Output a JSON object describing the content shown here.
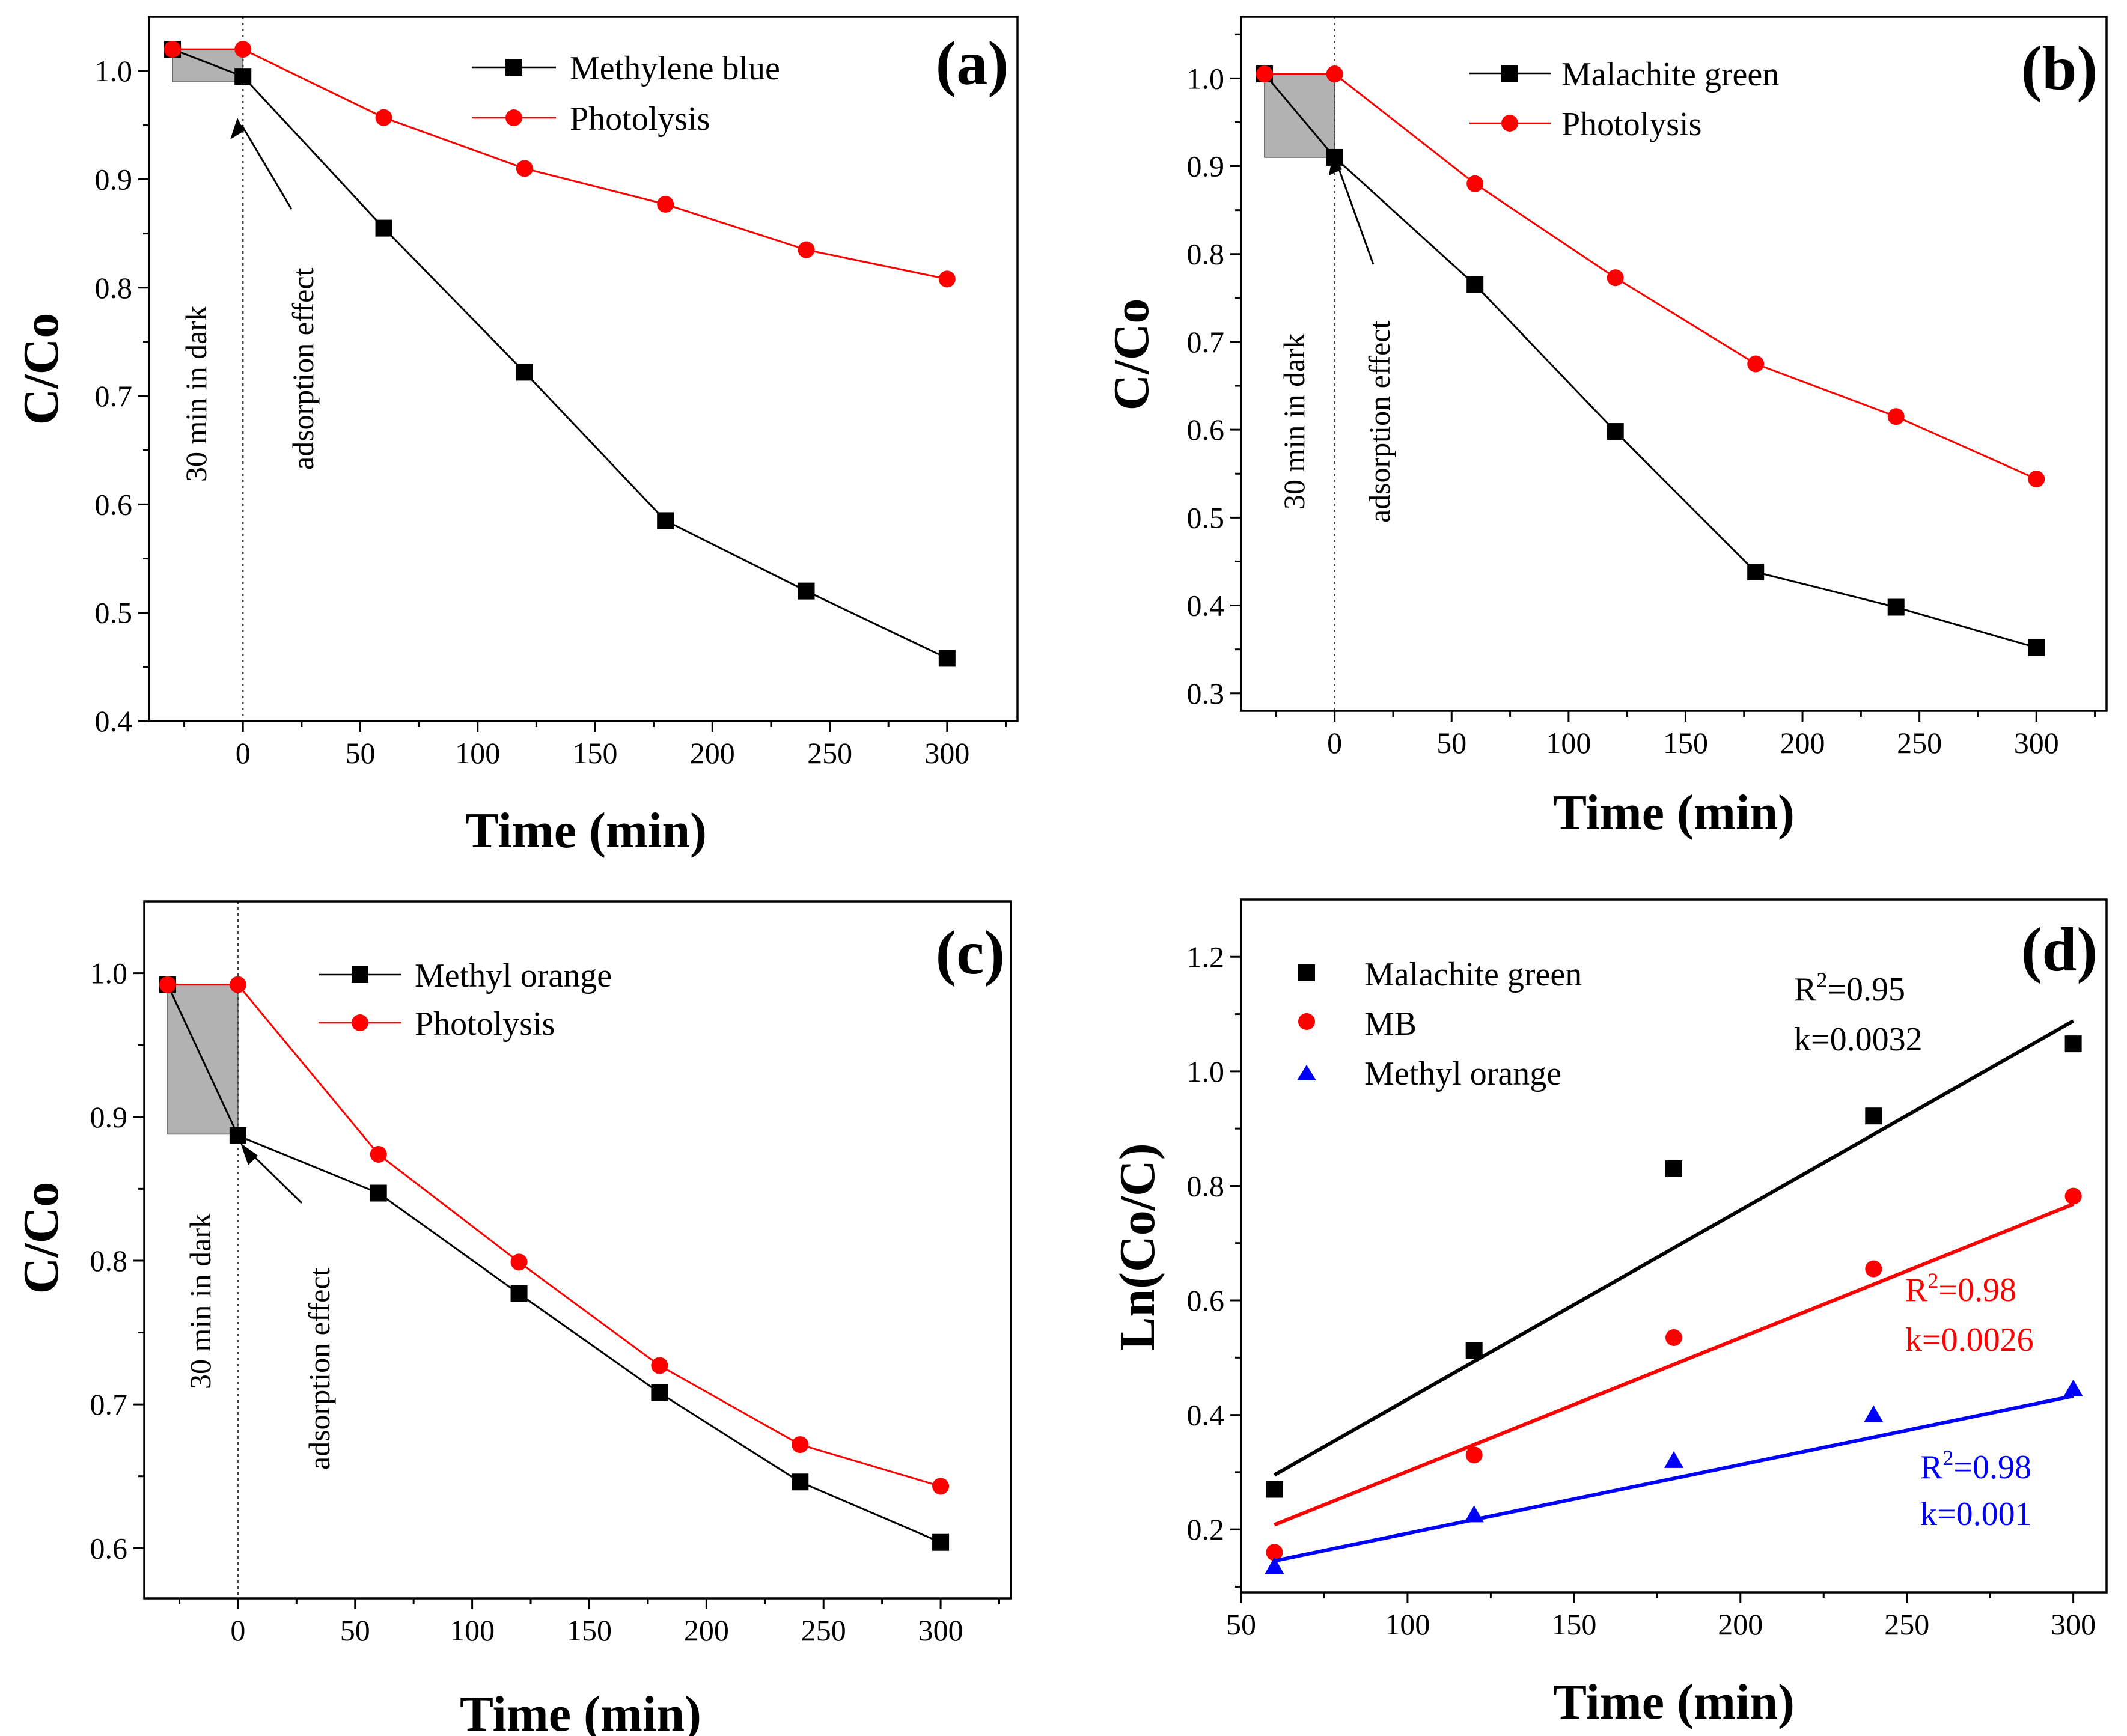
{
  "chart_data": [
    {
      "id": "a",
      "type": "line",
      "panel_label": "(a)",
      "xlabel": "Time (min)",
      "ylabel": "C/Co",
      "xlim": [
        -40,
        330
      ],
      "ylim": [
        0.4,
        1.05
      ],
      "xticks": [
        0,
        50,
        100,
        150,
        200,
        250,
        300
      ],
      "yticks": [
        0.4,
        0.5,
        0.6,
        0.7,
        0.8,
        0.9,
        1.0
      ],
      "ytick_decimals": 1,
      "dark_region": {
        "x0": -30,
        "x1": 0,
        "y_low": 0.99,
        "y_high": 1.02
      },
      "annotations": {
        "dark": "30 min in dark",
        "adsorption": "adsorption effect"
      },
      "series": [
        {
          "name": "Methylene blue",
          "color": "#000000",
          "marker": "square",
          "x": [
            -30,
            0,
            60,
            120,
            180,
            240,
            300
          ],
          "y": [
            1.02,
            0.995,
            0.855,
            0.722,
            0.585,
            0.52,
            0.458
          ]
        },
        {
          "name": "Photolysis",
          "color": "#ff0000",
          "marker": "circle",
          "x": [
            -30,
            0,
            60,
            120,
            180,
            240,
            300
          ],
          "y": [
            1.02,
            1.02,
            0.957,
            0.91,
            0.877,
            0.835,
            0.808
          ]
        }
      ]
    },
    {
      "id": "b",
      "type": "line",
      "panel_label": "(b)",
      "xlabel": "Time (min)",
      "ylabel": "C/Co",
      "xlim": [
        -40,
        330
      ],
      "ylim": [
        0.28,
        1.07
      ],
      "xticks": [
        0,
        50,
        100,
        150,
        200,
        250,
        300
      ],
      "yticks": [
        0.3,
        0.4,
        0.5,
        0.6,
        0.7,
        0.8,
        0.9,
        1.0
      ],
      "ytick_decimals": 1,
      "dark_region": {
        "x0": -30,
        "x1": 0,
        "y_low": 0.91,
        "y_high": 1.005
      },
      "annotations": {
        "dark": "30 min in dark",
        "adsorption": "adsorption effect"
      },
      "series": [
        {
          "name": "Malachite green",
          "color": "#000000",
          "marker": "square",
          "x": [
            -30,
            0,
            60,
            120,
            180,
            240,
            300
          ],
          "y": [
            1.005,
            0.91,
            0.765,
            0.598,
            0.438,
            0.398,
            0.352
          ]
        },
        {
          "name": "Photolysis",
          "color": "#ff0000",
          "marker": "circle",
          "x": [
            -30,
            0,
            60,
            120,
            180,
            240,
            300
          ],
          "y": [
            1.005,
            1.005,
            0.88,
            0.773,
            0.675,
            0.615,
            0.544
          ]
        }
      ]
    },
    {
      "id": "c",
      "type": "line",
      "panel_label": "(c)",
      "xlabel": "Time (min)",
      "ylabel": "C/Co",
      "xlim": [
        -40,
        330
      ],
      "ylim": [
        0.565,
        1.05
      ],
      "xticks": [
        0,
        50,
        100,
        150,
        200,
        250,
        300
      ],
      "yticks": [
        0.6,
        0.7,
        0.8,
        0.9,
        1.0
      ],
      "ytick_decimals": 1,
      "dark_region": {
        "x0": -30,
        "x1": 0,
        "y_low": 0.888,
        "y_high": 0.992
      },
      "annotations": {
        "dark": "30 min in dark",
        "adsorption": "adsorption effect"
      },
      "series": [
        {
          "name": "Methyl orange",
          "color": "#000000",
          "marker": "square",
          "x": [
            -30,
            0,
            60,
            120,
            180,
            240,
            300
          ],
          "y": [
            0.992,
            0.887,
            0.847,
            0.777,
            0.708,
            0.646,
            0.604
          ]
        },
        {
          "name": "Photolysis",
          "color": "#ff0000",
          "marker": "circle",
          "x": [
            -30,
            0,
            60,
            120,
            180,
            240,
            300
          ],
          "y": [
            0.992,
            0.992,
            0.874,
            0.799,
            0.727,
            0.672,
            0.643
          ]
        }
      ]
    },
    {
      "id": "d",
      "type": "scatter",
      "panel_label": "(d)",
      "xlabel": "Time (min)",
      "ylabel": "Ln(Co/C)",
      "xlim": [
        50,
        310
      ],
      "ylim": [
        0.09,
        1.3
      ],
      "xticks": [
        50,
        100,
        150,
        200,
        250,
        300
      ],
      "yticks": [
        0.2,
        0.4,
        0.6,
        0.8,
        1.0,
        1.2
      ],
      "ytick_decimals": 1,
      "series": [
        {
          "name": "Malachite green",
          "color": "#000000",
          "marker": "square",
          "x": [
            60,
            120,
            180,
            240,
            300
          ],
          "y": [
            0.27,
            0.512,
            0.83,
            0.922,
            1.048
          ],
          "fit": {
            "x0": 60,
            "y0": 0.295,
            "x1": 300,
            "y1": 1.088
          },
          "r2_label": "R",
          "r2_sup": "2",
          "r2_value": "=0.95",
          "k_label": "k=0.0032"
        },
        {
          "name": "MB",
          "color": "#ff0000",
          "marker": "circle",
          "x": [
            60,
            120,
            180,
            240,
            300
          ],
          "y": [
            0.16,
            0.33,
            0.535,
            0.655,
            0.782
          ],
          "fit": {
            "x0": 60,
            "y0": 0.208,
            "x1": 300,
            "y1": 0.768
          },
          "r2_label": "R",
          "r2_sup": "2",
          "r2_value": "=0.98",
          "k_label": "k=0.0026"
        },
        {
          "name": "Methyl orange",
          "color": "#0000ff",
          "marker": "triangle",
          "x": [
            60,
            120,
            180,
            240,
            300
          ],
          "y": [
            0.135,
            0.225,
            0.32,
            0.4,
            0.445
          ],
          "fit": {
            "x0": 60,
            "y0": 0.145,
            "x1": 300,
            "y1": 0.433
          },
          "r2_label": "R",
          "r2_sup": "2",
          "r2_value": "=0.98",
          "k_label": "k=0.001"
        }
      ]
    }
  ]
}
